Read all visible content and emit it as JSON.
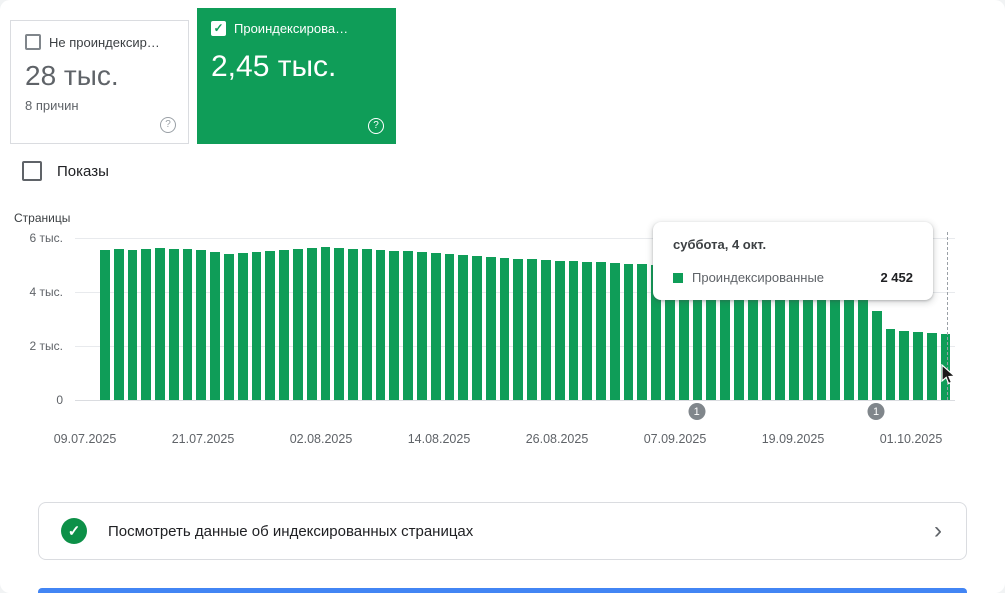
{
  "cards": {
    "not_indexed": {
      "label": "Не проиндексир…",
      "value": "28 тыс.",
      "sub": "8 причин",
      "checked": false
    },
    "indexed": {
      "label": "Проиндексирова…",
      "value": "2,45 тыс.",
      "checked": true
    }
  },
  "impressions": {
    "label": "Показы",
    "checked": false
  },
  "chart_data": {
    "type": "bar",
    "title": "",
    "ylabel": "Страницы",
    "xlabel": "",
    "ylim": [
      0,
      6000
    ],
    "yticks": [
      "6 тыс.",
      "4 тыс.",
      "2 тыс.",
      "0"
    ],
    "xticklabels": [
      "09.07.2025",
      "21.07.2025",
      "02.08.2025",
      "14.08.2025",
      "26.08.2025",
      "07.09.2025",
      "19.09.2025",
      "01.10.2025"
    ],
    "grid": true,
    "legend_position": "tooltip-only",
    "series": [
      {
        "name": "Проиндексированные",
        "color": "#0f9d58",
        "values": [
          5560,
          5575,
          5545,
          5600,
          5615,
          5605,
          5580,
          5555,
          5465,
          5415,
          5435,
          5485,
          5535,
          5565,
          5605,
          5640,
          5650,
          5635,
          5605,
          5580,
          5555,
          5530,
          5505,
          5480,
          5445,
          5410,
          5375,
          5340,
          5305,
          5270,
          5240,
          5210,
          5185,
          5160,
          5140,
          5120,
          5100,
          5080,
          5055,
          5030,
          5000,
          4960,
          4915,
          4870,
          4820,
          4770,
          4720,
          4670,
          4620,
          4570,
          4520,
          4470,
          4420,
          4370,
          4310,
          4250,
          3300,
          2620,
          2560,
          2530,
          2500,
          2452
        ]
      }
    ]
  },
  "tooltip": {
    "title": "суббота, 4 окт.",
    "series_label": "Проиндексированные",
    "value": "2 452"
  },
  "annotations": [
    {
      "label": "1",
      "position_pct": 70.2
    },
    {
      "label": "1",
      "position_pct": 91.3
    }
  ],
  "footer": {
    "label": "Посмотреть данные об индексированных страницах"
  },
  "icons": {
    "check": "✓",
    "chevron": "›",
    "help": "?"
  },
  "colors": {
    "green": "#0f9d58",
    "footer_green": "#0d9048",
    "gray_text": "#5f6368",
    "dark_text": "#202124",
    "border": "#dadce0",
    "annotation_gray": "#80868b",
    "blue_bar": "#4285f4"
  }
}
